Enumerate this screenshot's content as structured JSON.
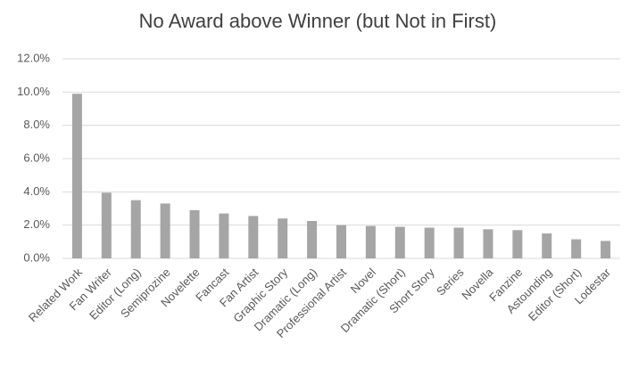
{
  "chart_data": {
    "type": "bar",
    "title": "No Award above Winner (but Not in First)",
    "categories": [
      "Related Work",
      "Fan Writer",
      "Editor (Long)",
      "Semiprozine",
      "Novelette",
      "Fancast",
      "Fan Artist",
      "Graphic Story",
      "Dramatic (Long)",
      "Professional Artist",
      "Novel",
      "Dramatic (Short)",
      "Short Story",
      "Series",
      "Novella",
      "Fanzine",
      "Astounding",
      "Editor (Short)",
      "Lodestar"
    ],
    "values": [
      9.9,
      3.95,
      3.5,
      3.3,
      2.9,
      2.7,
      2.55,
      2.4,
      2.25,
      2.0,
      1.95,
      1.9,
      1.85,
      1.85,
      1.75,
      1.7,
      1.5,
      1.15,
      1.05
    ],
    "color": "#a5a5a5",
    "ylim": [
      0,
      12
    ],
    "yticks": [
      {
        "value": 0,
        "label": "0.0%"
      },
      {
        "value": 2,
        "label": "2.0%"
      },
      {
        "value": 4,
        "label": "4.0%"
      },
      {
        "value": 6,
        "label": "6.0%"
      },
      {
        "value": 8,
        "label": "8.0%"
      },
      {
        "value": 10,
        "label": "10.0%"
      },
      {
        "value": 12,
        "label": "12.0%"
      }
    ],
    "grid": true
  }
}
